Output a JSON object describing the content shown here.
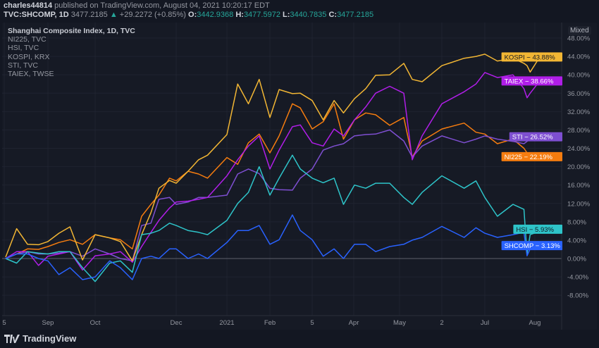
{
  "header": {
    "user": "charles44814",
    "published": " published on TradingView.com, August 04, 2021 10:20:17 EDT",
    "symbol": "TVC:SHCOMP, 1D",
    "last": "3477.2185",
    "change": "+29.2272 (+0.85%)",
    "o_label": "O:",
    "o": "3442.9368",
    "h_label": "H:",
    "h": "3477.5972",
    "l_label": "L:",
    "l": "3440.7835",
    "c_label": "C:",
    "c": "3477.2185",
    "up_color": "#26a69a"
  },
  "legend": [
    "Shanghai Composite Index, 1D, TVC",
    "NI225, TVC",
    "HSI, TVC",
    "KOSPI, KRX",
    "STI, TVC",
    "TAIEX, TWSE"
  ],
  "scale_mode": "Mixed",
  "brand": "TradingView",
  "chart_data": {
    "type": "line",
    "grid": true,
    "y_unit": "%",
    "ylim": [
      -10,
      50
    ],
    "y_ticks": [
      "-8.00%",
      "-4.00%",
      "0.00%",
      "4.00%",
      "8.00%",
      "12.00%",
      "16.00%",
      "20.00%",
      "24.00%",
      "28.00%",
      "32.00%",
      "36.00%",
      "40.00%",
      "44.00%",
      "48.00%"
    ],
    "x_tick_labels": [
      "5",
      "Sep",
      "Oct",
      "Dec",
      "2021",
      "Feb",
      "5",
      "Apr",
      "May",
      "2",
      "Jul",
      "Aug"
    ],
    "dates": [
      "2020-08-05",
      "2020-08-12",
      "2020-08-19",
      "2020-08-26",
      "2020-09-01",
      "2020-09-08",
      "2020-09-15",
      "2020-09-23",
      "2020-10-01",
      "2020-10-12",
      "2020-10-20",
      "2020-10-29",
      "2020-11-05",
      "2020-11-12",
      "2020-11-18",
      "2020-11-26",
      "2020-12-01",
      "2020-12-09",
      "2020-12-16",
      "2020-12-22",
      "2021-01-04",
      "2021-01-11",
      "2021-01-18",
      "2021-01-25",
      "2021-02-01",
      "2021-02-08",
      "2021-02-18",
      "2021-02-24",
      "2021-03-05",
      "2021-03-12",
      "2021-03-19",
      "2021-03-25",
      "2021-04-01",
      "2021-04-09",
      "2021-04-16",
      "2021-04-26",
      "2021-05-06",
      "2021-05-12",
      "2021-05-19",
      "2021-06-02",
      "2021-06-17",
      "2021-06-25",
      "2021-07-01",
      "2021-07-09",
      "2021-07-19",
      "2021-07-26",
      "2021-07-28",
      "2021-07-30",
      "2021-08-04"
    ],
    "series": [
      {
        "name": "KOSPI",
        "color": "#f2b634",
        "label_text": "#131722",
        "last_label": "KOSPI − 43.88%",
        "values": [
          0.3,
          6.5,
          3.1,
          3,
          3.7,
          5.5,
          6.9,
          -0.3,
          5.2,
          4.5,
          3.7,
          -0.5,
          5.2,
          10,
          15.3,
          17,
          16.4,
          19,
          21.5,
          22.5,
          27,
          38,
          33.7,
          39,
          30.7,
          36.8,
          35.9,
          36,
          34.4,
          30.2,
          34.4,
          31.7,
          34.8,
          37,
          39.9,
          40,
          42.5,
          39,
          38.5,
          42,
          43.6,
          44,
          44.5,
          43,
          43.6,
          42.5,
          42,
          40.6,
          43.88
        ]
      },
      {
        "name": "TAIEX",
        "color": "#b01ee8",
        "label_text": "#ffffff",
        "last_label": "TAIEX − 38.66%",
        "values": [
          0,
          1.5,
          1.5,
          -1.5,
          0.5,
          1,
          1.5,
          -2.5,
          0.6,
          1,
          1.5,
          -0.8,
          2.6,
          5.7,
          8.3,
          11,
          12.3,
          12.5,
          12.9,
          13.3,
          18,
          21.5,
          24.5,
          26.7,
          19.5,
          23.6,
          28.7,
          29.1,
          25.2,
          24.5,
          28.2,
          26.7,
          30.2,
          33,
          36,
          37.5,
          36,
          21.5,
          26.7,
          33.7,
          36.3,
          38,
          40.5,
          39.4,
          40,
          37,
          35,
          36,
          38.66
        ]
      },
      {
        "name": "STI",
        "color": "#7e4fd1",
        "label_text": "#ffffff",
        "last_label": "STI − 26.52%",
        "values": [
          0,
          1,
          1.5,
          1,
          1,
          1.2,
          1.5,
          0.5,
          2.1,
          1,
          0,
          -0.5,
          7.2,
          7.7,
          12.9,
          13.3,
          11.8,
          12.3,
          13.3,
          13.3,
          13.8,
          18.4,
          19.5,
          18.5,
          15.3,
          15,
          14.9,
          17.5,
          19.5,
          23.6,
          24.5,
          25,
          26.7,
          27,
          27.1,
          28,
          25.6,
          22.1,
          24.5,
          26.7,
          25.2,
          26,
          26.7,
          26,
          25.5,
          25,
          25.5,
          26,
          26.52
        ]
      },
      {
        "name": "NI225",
        "color": "#f57c0f",
        "label_text": "#ffffff",
        "last_label": "NI225 − 22.19%",
        "values": [
          0,
          1,
          2.1,
          2,
          2.6,
          3.5,
          4.1,
          3.1,
          5.2,
          4.5,
          4.1,
          2.1,
          9.2,
          11.8,
          13.8,
          17.5,
          16.9,
          19,
          18.4,
          17.5,
          22,
          20.5,
          25.2,
          27.1,
          23,
          26.7,
          33.7,
          32.8,
          28.2,
          29.8,
          33.7,
          26,
          30.2,
          31.7,
          31.3,
          29,
          30.7,
          22.1,
          25.6,
          28.2,
          29.5,
          27.5,
          27.1,
          25,
          26,
          24,
          23,
          21.5,
          22.19
        ]
      },
      {
        "name": "HSI",
        "color": "#2ec4c9",
        "label_text": "#131722",
        "last_label": "HSI − 5.93%",
        "values": [
          0,
          -1,
          1.5,
          1.2,
          1,
          1.5,
          1.5,
          -2,
          -5,
          -1,
          -0.5,
          -3,
          5.2,
          5.5,
          6.1,
          7.7,
          7.2,
          6.1,
          5.7,
          5.2,
          8.3,
          12,
          14.4,
          20,
          13.8,
          17.5,
          22.5,
          19.5,
          17.5,
          16.5,
          17.5,
          11.8,
          16,
          15.3,
          16.4,
          16.4,
          13.3,
          11.8,
          14.4,
          18,
          15.3,
          16.9,
          13.3,
          9.2,
          11.8,
          10.7,
          1,
          5.2,
          5.93
        ]
      },
      {
        "name": "SHCOMP",
        "color": "#2962ff",
        "label_text": "#ffffff",
        "last_label": "SHCOMP − 3.13%",
        "values": [
          0,
          1,
          1,
          0,
          -0.5,
          -3.5,
          -2,
          -4.6,
          -4,
          -0.5,
          -2,
          -4.6,
          0,
          0.5,
          0,
          2.1,
          2.1,
          0,
          1,
          0,
          3.5,
          6.1,
          6.1,
          7.2,
          3.1,
          4.1,
          9.5,
          6.1,
          4.1,
          0.5,
          2.1,
          0,
          3.1,
          3.1,
          1.5,
          2.6,
          3.1,
          4,
          4.6,
          7,
          4.6,
          6.7,
          5.5,
          4.6,
          5.2,
          5.7,
          0.6,
          2.1,
          3.13
        ]
      }
    ]
  }
}
